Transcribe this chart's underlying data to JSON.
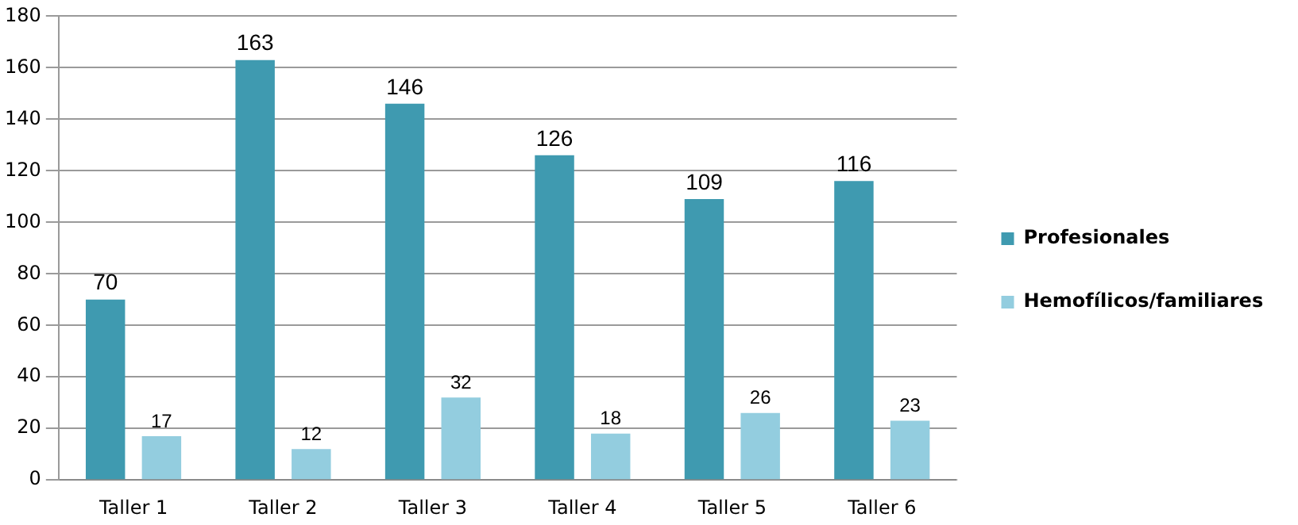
{
  "chart_data": {
    "type": "bar",
    "categories": [
      "Taller 1",
      "Taller 2",
      "Taller 3",
      "Taller 4",
      "Taller 5",
      "Taller 6"
    ],
    "series": [
      {
        "name": "Profesionales",
        "color": "#3f9ab0",
        "values": [
          70,
          163,
          146,
          126,
          109,
          116
        ]
      },
      {
        "name": "Hemofílicos/familiares",
        "color": "#93cddf",
        "values": [
          17,
          12,
          32,
          18,
          26,
          23
        ]
      }
    ],
    "ylim": [
      0,
      180
    ],
    "yticks": [
      0,
      20,
      40,
      60,
      80,
      100,
      120,
      140,
      160,
      180
    ],
    "grid": "y",
    "legend": "right",
    "data_labels": true
  }
}
